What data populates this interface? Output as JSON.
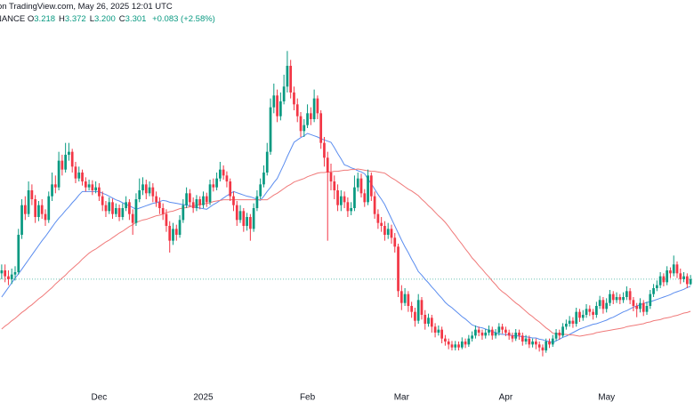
{
  "header": {
    "published": "on TradingView.com, May 26, 2025 12:01 UTC",
    "exchange": "BINANCE",
    "ohlc": [
      {
        "label": "O",
        "value": "3.218"
      },
      {
        "label": "H",
        "value": "3.372"
      },
      {
        "label": "L",
        "value": "3.200"
      },
      {
        "label": "C",
        "value": "3.301"
      }
    ],
    "change": "+0.083 (+2.58%)"
  },
  "chart_data": {
    "type": "candlestick",
    "up_color": "#089981",
    "down_color": "#f23645",
    "last_price_line_color": "#089981",
    "ylim": [
      1.41,
      7.59
    ],
    "categories": [
      null,
      null,
      null,
      null,
      null,
      null,
      null,
      null,
      null,
      null,
      null,
      null,
      null,
      null,
      null,
      null,
      null,
      null,
      null,
      null,
      null,
      null,
      null,
      null,
      null,
      null,
      null,
      null,
      null,
      "Dec",
      null,
      null,
      null,
      null,
      null,
      null,
      null,
      null,
      null,
      null,
      null,
      null,
      null,
      null,
      null,
      null,
      null,
      null,
      null,
      null,
      null,
      null,
      null,
      null,
      null,
      null,
      null,
      null,
      null,
      null,
      "2025",
      null,
      null,
      null,
      null,
      null,
      null,
      null,
      null,
      null,
      null,
      null,
      null,
      null,
      null,
      null,
      null,
      null,
      null,
      null,
      null,
      null,
      null,
      null,
      null,
      null,
      null,
      null,
      null,
      null,
      null,
      "Feb",
      null,
      null,
      null,
      null,
      null,
      null,
      null,
      null,
      null,
      null,
      null,
      null,
      null,
      null,
      null,
      null,
      null,
      null,
      null,
      null,
      null,
      null,
      null,
      null,
      null,
      null,
      null,
      "Mar",
      null,
      null,
      null,
      null,
      null,
      null,
      null,
      null,
      null,
      null,
      null,
      null,
      null,
      null,
      null,
      null,
      null,
      null,
      null,
      null,
      null,
      null,
      null,
      null,
      null,
      null,
      null,
      null,
      null,
      null,
      "Apr",
      null,
      null,
      null,
      null,
      null,
      null,
      null,
      null,
      null,
      null,
      null,
      null,
      null,
      null,
      null,
      null,
      null,
      null,
      null,
      null,
      null,
      null,
      null,
      null,
      null,
      null,
      null,
      null,
      null,
      "May",
      null,
      null,
      null,
      null,
      null,
      null,
      null,
      null,
      null,
      null,
      null,
      null,
      null,
      null,
      null,
      null,
      null,
      null,
      null,
      null,
      null,
      null,
      null,
      null,
      null
    ],
    "open": [
      3.4,
      3.45,
      3.35,
      3.3,
      3.38,
      3.42,
      4.05,
      4.55,
      4.4,
      4.8,
      4.65,
      4.35,
      4.55,
      4.4,
      4.3,
      4.7,
      4.9,
      4.85,
      5.3,
      5.15,
      5.4,
      5.45,
      5.2,
      5.0,
      5.1,
      4.95,
      4.85,
      4.9,
      4.8,
      4.85,
      4.7,
      4.55,
      4.45,
      4.6,
      4.4,
      4.5,
      4.35,
      4.5,
      4.6,
      4.4,
      4.25,
      4.65,
      4.8,
      4.9,
      4.75,
      4.85,
      4.7,
      4.6,
      4.5,
      4.4,
      4.2,
      3.95,
      4.15,
      4.05,
      4.3,
      4.55,
      4.75,
      4.6,
      4.5,
      4.65,
      4.55,
      4.7,
      4.6,
      4.9,
      4.85,
      5.0,
      5.15,
      5.05,
      4.95,
      4.7,
      4.55,
      4.3,
      4.45,
      4.2,
      4.35,
      4.15,
      4.5,
      4.7,
      4.9,
      5.1,
      5.45,
      6.2,
      6.4,
      6.05,
      6.3,
      6.55,
      6.9,
      6.45,
      6.25,
      6.05,
      5.8,
      5.9,
      6.1,
      6.0,
      6.35,
      6.1,
      5.6,
      5.35,
      5.1,
      4.95,
      4.8,
      4.55,
      4.7,
      4.6,
      4.45,
      4.5,
      4.85,
      5.0,
      4.75,
      4.6,
      5.05,
      4.7,
      4.4,
      4.25,
      4.2,
      4.05,
      4.15,
      4.0,
      3.85,
      3.1,
      2.9,
      3.05,
      2.85,
      2.75,
      2.6,
      2.95,
      2.7,
      2.55,
      2.65,
      2.5,
      2.4,
      2.45,
      2.3,
      2.25,
      2.2,
      2.15,
      2.2,
      2.15,
      2.25,
      2.2,
      2.3,
      2.35,
      2.45,
      2.4,
      2.35,
      2.4,
      2.45,
      2.35,
      2.4,
      2.5,
      2.45,
      2.4,
      2.35,
      2.3,
      2.4,
      2.35,
      2.25,
      2.3,
      2.2,
      2.25,
      2.2,
      2.15,
      2.1,
      2.25,
      2.2,
      2.3,
      2.4,
      2.35,
      2.5,
      2.55,
      2.6,
      2.55,
      2.75,
      2.65,
      2.7,
      2.8,
      2.75,
      2.7,
      2.85,
      2.95,
      2.8,
      2.9,
      3.05,
      2.95,
      3.0,
      2.95,
      3.0,
      3.1,
      2.95,
      2.85,
      2.8,
      2.9,
      2.75,
      2.85,
      3.05,
      3.15,
      3.2,
      3.35,
      3.25,
      3.45,
      3.4,
      3.55,
      3.4,
      3.3,
      3.35,
      3.218
    ],
    "high": [
      3.55,
      3.55,
      3.45,
      3.48,
      3.52,
      4.15,
      4.65,
      4.7,
      4.95,
      4.9,
      4.72,
      4.62,
      4.65,
      4.48,
      4.78,
      5.1,
      5.05,
      5.45,
      5.4,
      5.6,
      5.6,
      5.5,
      5.28,
      5.2,
      5.15,
      5.02,
      4.98,
      4.97,
      4.95,
      4.92,
      4.78,
      4.62,
      4.68,
      4.66,
      4.58,
      4.56,
      4.58,
      4.7,
      4.65,
      4.48,
      4.75,
      5.0,
      5.02,
      4.98,
      4.95,
      4.92,
      4.78,
      4.68,
      4.58,
      4.48,
      4.28,
      4.25,
      4.22,
      4.38,
      4.65,
      4.85,
      4.82,
      4.68,
      4.72,
      4.7,
      4.78,
      4.76,
      4.98,
      5.0,
      5.1,
      5.28,
      5.22,
      5.12,
      5.0,
      4.78,
      4.62,
      4.55,
      4.5,
      4.42,
      4.4,
      4.58,
      4.8,
      5.0,
      5.22,
      5.6,
      6.35,
      6.6,
      6.5,
      6.45,
      6.75,
      7.15,
      7.0,
      6.55,
      6.35,
      6.12,
      6.0,
      6.25,
      6.2,
      6.5,
      6.4,
      6.15,
      5.7,
      5.45,
      5.25,
      5.05,
      4.9,
      4.8,
      4.78,
      4.68,
      4.6,
      5.05,
      5.1,
      5.08,
      4.82,
      5.15,
      5.1,
      4.78,
      4.48,
      4.35,
      4.28,
      4.25,
      4.22,
      4.08,
      3.9,
      3.2,
      3.15,
      3.1,
      2.92,
      2.82,
      3.05,
      3.0,
      2.78,
      2.72,
      2.7,
      2.56,
      2.52,
      2.5,
      2.36,
      2.3,
      2.26,
      2.26,
      2.25,
      2.32,
      2.3,
      2.36,
      2.42,
      2.52,
      2.5,
      2.45,
      2.46,
      2.52,
      2.5,
      2.46,
      2.56,
      2.55,
      2.5,
      2.45,
      2.4,
      2.46,
      2.45,
      2.4,
      2.36,
      2.35,
      2.3,
      2.3,
      2.25,
      2.2,
      2.3,
      2.3,
      2.36,
      2.46,
      2.45,
      2.56,
      2.62,
      2.68,
      2.66,
      2.82,
      2.8,
      2.78,
      2.88,
      2.86,
      2.8,
      2.92,
      3.02,
      3.0,
      2.98,
      3.12,
      3.1,
      3.08,
      3.05,
      3.08,
      3.18,
      3.15,
      3.0,
      2.9,
      2.98,
      2.95,
      2.92,
      3.12,
      3.22,
      3.28,
      3.42,
      3.4,
      3.52,
      3.5,
      3.7,
      3.6,
      3.48,
      3.42,
      3.4,
      3.372
    ],
    "low": [
      3.3,
      3.25,
      3.2,
      3.22,
      3.28,
      3.38,
      3.98,
      4.3,
      4.35,
      4.55,
      4.25,
      4.28,
      4.32,
      4.2,
      4.25,
      4.62,
      4.75,
      4.8,
      5.05,
      5.1,
      5.3,
      5.1,
      4.92,
      4.95,
      4.88,
      4.78,
      4.8,
      4.72,
      4.75,
      4.62,
      4.45,
      4.35,
      4.4,
      4.32,
      4.35,
      4.28,
      4.3,
      4.45,
      4.3,
      4.05,
      4.2,
      4.6,
      4.72,
      4.65,
      4.7,
      4.6,
      4.52,
      4.4,
      4.3,
      4.1,
      3.75,
      3.88,
      3.95,
      4.0,
      4.25,
      4.5,
      4.52,
      4.42,
      4.45,
      4.48,
      4.5,
      4.52,
      4.55,
      4.78,
      4.8,
      4.95,
      4.98,
      4.85,
      4.62,
      4.45,
      4.2,
      4.25,
      4.1,
      4.12,
      3.95,
      4.1,
      4.45,
      4.65,
      4.85,
      5.05,
      5.4,
      6.1,
      5.95,
      5.98,
      6.25,
      6.45,
      6.35,
      6.15,
      5.95,
      5.7,
      5.7,
      5.85,
      5.9,
      5.95,
      6.0,
      5.5,
      5.2,
      3.95,
      4.8,
      4.65,
      4.45,
      4.45,
      4.5,
      4.35,
      4.38,
      4.45,
      4.78,
      4.68,
      4.52,
      4.55,
      4.62,
      4.32,
      4.15,
      4.1,
      3.95,
      3.98,
      3.9,
      3.75,
      3.0,
      2.78,
      2.85,
      2.75,
      2.65,
      2.5,
      2.55,
      2.62,
      2.45,
      2.5,
      2.4,
      2.32,
      2.35,
      2.22,
      2.18,
      2.12,
      2.1,
      2.1,
      2.1,
      2.12,
      2.14,
      2.16,
      2.25,
      2.3,
      2.34,
      2.28,
      2.3,
      2.35,
      2.28,
      2.3,
      2.35,
      2.38,
      2.34,
      2.28,
      2.24,
      2.26,
      2.28,
      2.18,
      2.2,
      2.14,
      2.15,
      2.12,
      2.08,
      2.0,
      2.06,
      2.14,
      2.16,
      2.26,
      2.28,
      2.32,
      2.45,
      2.5,
      2.48,
      2.5,
      2.58,
      2.6,
      2.65,
      2.68,
      2.62,
      2.65,
      2.8,
      2.72,
      2.74,
      2.85,
      2.88,
      2.9,
      2.88,
      2.9,
      2.95,
      2.88,
      2.76,
      2.66,
      2.74,
      2.68,
      2.7,
      2.8,
      3.0,
      3.1,
      3.15,
      3.18,
      3.2,
      3.32,
      3.35,
      3.32,
      3.22,
      3.25,
      3.15,
      3.2
    ],
    "close": [
      3.45,
      3.35,
      3.3,
      3.38,
      3.42,
      4.05,
      4.55,
      4.4,
      4.8,
      4.65,
      4.35,
      4.55,
      4.4,
      4.3,
      4.7,
      4.9,
      4.85,
      5.3,
      5.15,
      5.4,
      5.45,
      5.2,
      5.0,
      5.1,
      4.95,
      4.85,
      4.9,
      4.8,
      4.85,
      4.7,
      4.55,
      4.45,
      4.6,
      4.4,
      4.5,
      4.35,
      4.5,
      4.6,
      4.4,
      4.25,
      4.65,
      4.8,
      4.9,
      4.75,
      4.85,
      4.7,
      4.6,
      4.5,
      4.4,
      4.2,
      3.95,
      4.15,
      4.05,
      4.3,
      4.55,
      4.75,
      4.6,
      4.5,
      4.65,
      4.55,
      4.7,
      4.6,
      4.9,
      4.85,
      5.0,
      5.15,
      5.05,
      4.95,
      4.7,
      4.55,
      4.3,
      4.45,
      4.2,
      4.35,
      4.15,
      4.5,
      4.7,
      4.9,
      5.1,
      5.45,
      6.2,
      6.4,
      6.05,
      6.3,
      6.55,
      6.9,
      6.45,
      6.25,
      6.05,
      5.8,
      5.9,
      6.1,
      6.0,
      6.35,
      6.1,
      5.6,
      5.35,
      5.1,
      4.95,
      4.8,
      4.55,
      4.7,
      4.6,
      4.45,
      4.5,
      4.85,
      5.0,
      4.75,
      4.6,
      5.05,
      4.7,
      4.4,
      4.25,
      4.2,
      4.05,
      4.15,
      4.0,
      3.85,
      3.1,
      2.9,
      3.05,
      2.85,
      2.75,
      2.6,
      2.95,
      2.7,
      2.55,
      2.65,
      2.5,
      2.4,
      2.45,
      2.3,
      2.25,
      2.2,
      2.15,
      2.2,
      2.15,
      2.25,
      2.2,
      2.3,
      2.35,
      2.45,
      2.4,
      2.35,
      2.4,
      2.45,
      2.35,
      2.4,
      2.5,
      2.45,
      2.4,
      2.35,
      2.3,
      2.4,
      2.35,
      2.25,
      2.3,
      2.2,
      2.25,
      2.2,
      2.15,
      2.1,
      2.25,
      2.2,
      2.3,
      2.4,
      2.35,
      2.5,
      2.55,
      2.6,
      2.55,
      2.75,
      2.65,
      2.7,
      2.8,
      2.75,
      2.7,
      2.85,
      2.95,
      2.8,
      2.9,
      3.05,
      2.95,
      3.0,
      2.95,
      3.0,
      3.1,
      2.95,
      2.85,
      2.8,
      2.9,
      2.75,
      2.85,
      3.05,
      3.15,
      3.2,
      3.35,
      3.25,
      3.45,
      3.4,
      3.55,
      3.4,
      3.3,
      3.35,
      3.218,
      3.301
    ],
    "overlays": [
      {
        "color": "#5b8def",
        "values": [
          3.0,
          3.08,
          3.16,
          3.24,
          3.32,
          3.39,
          3.47,
          3.55,
          3.63,
          3.71,
          3.79,
          3.87,
          3.95,
          4.02,
          4.1,
          4.18,
          4.26,
          4.33,
          4.39,
          4.46,
          4.52,
          4.59,
          4.65,
          4.72,
          4.78,
          4.78,
          4.78,
          4.78,
          4.78,
          4.78,
          4.75,
          4.73,
          4.7,
          4.67,
          4.64,
          4.62,
          4.59,
          4.56,
          4.54,
          4.51,
          4.48,
          4.5,
          4.52,
          4.54,
          4.56,
          4.58,
          4.59,
          4.61,
          4.63,
          4.62,
          4.6,
          4.59,
          4.58,
          4.57,
          4.56,
          4.55,
          4.54,
          4.52,
          4.51,
          4.5,
          4.49,
          4.48,
          4.52,
          4.56,
          4.59,
          4.63,
          4.67,
          4.71,
          4.74,
          4.78,
          4.76,
          4.74,
          4.72,
          4.7,
          4.69,
          4.67,
          4.65,
          4.63,
          4.7,
          4.78,
          4.85,
          4.93,
          5.0,
          5.12,
          5.24,
          5.37,
          5.49,
          5.61,
          5.65,
          5.69,
          5.72,
          5.76,
          5.74,
          5.72,
          5.7,
          5.67,
          5.65,
          5.63,
          5.61,
          5.52,
          5.42,
          5.33,
          5.23,
          5.21,
          5.18,
          5.16,
          5.13,
          5.11,
          5.08,
          4.99,
          4.91,
          4.82,
          4.73,
          4.65,
          4.56,
          4.44,
          4.32,
          4.2,
          4.08,
          3.96,
          3.85,
          3.75,
          3.64,
          3.54,
          3.43,
          3.37,
          3.3,
          3.24,
          3.17,
          3.11,
          3.04,
          2.98,
          2.91,
          2.86,
          2.82,
          2.77,
          2.72,
          2.67,
          2.63,
          2.58,
          2.53,
          2.51,
          2.49,
          2.48,
          2.46,
          2.44,
          2.42,
          2.4,
          2.38,
          2.37,
          2.37,
          2.36,
          2.35,
          2.35,
          2.34,
          2.33,
          2.33,
          2.32,
          2.31,
          2.31,
          2.29,
          2.28,
          2.26,
          2.25,
          2.23,
          2.26,
          2.29,
          2.32,
          2.34,
          2.37,
          2.4,
          2.43,
          2.46,
          2.48,
          2.5,
          2.52,
          2.54,
          2.55,
          2.57,
          2.59,
          2.61,
          2.64,
          2.66,
          2.69,
          2.72,
          2.75,
          2.77,
          2.8,
          2.83,
          2.85,
          2.87,
          2.89,
          2.91,
          2.92,
          2.94,
          2.96,
          2.98,
          3.0,
          3.02,
          3.04,
          3.07,
          3.09,
          3.11,
          3.13,
          3.16,
          3.18
        ]
      },
      {
        "color": "#f07a7a",
        "values": [
          2.46,
          2.51,
          2.55,
          2.6,
          2.64,
          2.69,
          2.74,
          2.78,
          2.83,
          2.87,
          2.92,
          2.97,
          3.01,
          3.06,
          3.11,
          3.16,
          3.22,
          3.27,
          3.32,
          3.37,
          3.43,
          3.48,
          3.53,
          3.58,
          3.64,
          3.69,
          3.74,
          3.78,
          3.81,
          3.85,
          3.89,
          3.93,
          3.96,
          4.0,
          4.04,
          4.08,
          4.11,
          4.15,
          4.19,
          4.22,
          4.26,
          4.28,
          4.3,
          4.31,
          4.33,
          4.35,
          4.37,
          4.38,
          4.4,
          4.42,
          4.44,
          4.45,
          4.47,
          4.49,
          4.5,
          4.51,
          4.52,
          4.54,
          4.55,
          4.56,
          4.57,
          4.58,
          4.59,
          4.61,
          4.62,
          4.63,
          4.64,
          4.64,
          4.64,
          4.64,
          4.64,
          4.64,
          4.64,
          4.64,
          4.64,
          4.64,
          4.64,
          4.64,
          4.64,
          4.64,
          4.68,
          4.72,
          4.75,
          4.79,
          4.83,
          4.87,
          4.9,
          4.94,
          4.96,
          4.98,
          5.0,
          5.03,
          5.05,
          5.07,
          5.09,
          5.1,
          5.1,
          5.11,
          5.11,
          5.12,
          5.12,
          5.13,
          5.14,
          5.14,
          5.15,
          5.15,
          5.16,
          5.15,
          5.14,
          5.13,
          5.12,
          5.12,
          5.11,
          5.1,
          5.09,
          5.05,
          5.01,
          4.98,
          4.94,
          4.9,
          4.86,
          4.82,
          4.79,
          4.75,
          4.71,
          4.65,
          4.6,
          4.54,
          4.49,
          4.43,
          4.37,
          4.32,
          4.26,
          4.19,
          4.11,
          4.04,
          3.96,
          3.89,
          3.81,
          3.74,
          3.66,
          3.6,
          3.53,
          3.47,
          3.4,
          3.34,
          3.27,
          3.21,
          3.14,
          3.09,
          3.05,
          3.0,
          2.95,
          2.9,
          2.86,
          2.81,
          2.76,
          2.71,
          2.67,
          2.62,
          2.58,
          2.53,
          2.48,
          2.44,
          2.39,
          2.38,
          2.38,
          2.37,
          2.37,
          2.36,
          2.36,
          2.35,
          2.34,
          2.35,
          2.36,
          2.37,
          2.38,
          2.4,
          2.41,
          2.42,
          2.43,
          2.44,
          2.45,
          2.46,
          2.47,
          2.48,
          2.5,
          2.51,
          2.52,
          2.53,
          2.54,
          2.55,
          2.57,
          2.58,
          2.6,
          2.61,
          2.62,
          2.64,
          2.65,
          2.66,
          2.68,
          2.69,
          2.71,
          2.73,
          2.74,
          2.76
        ]
      }
    ]
  }
}
